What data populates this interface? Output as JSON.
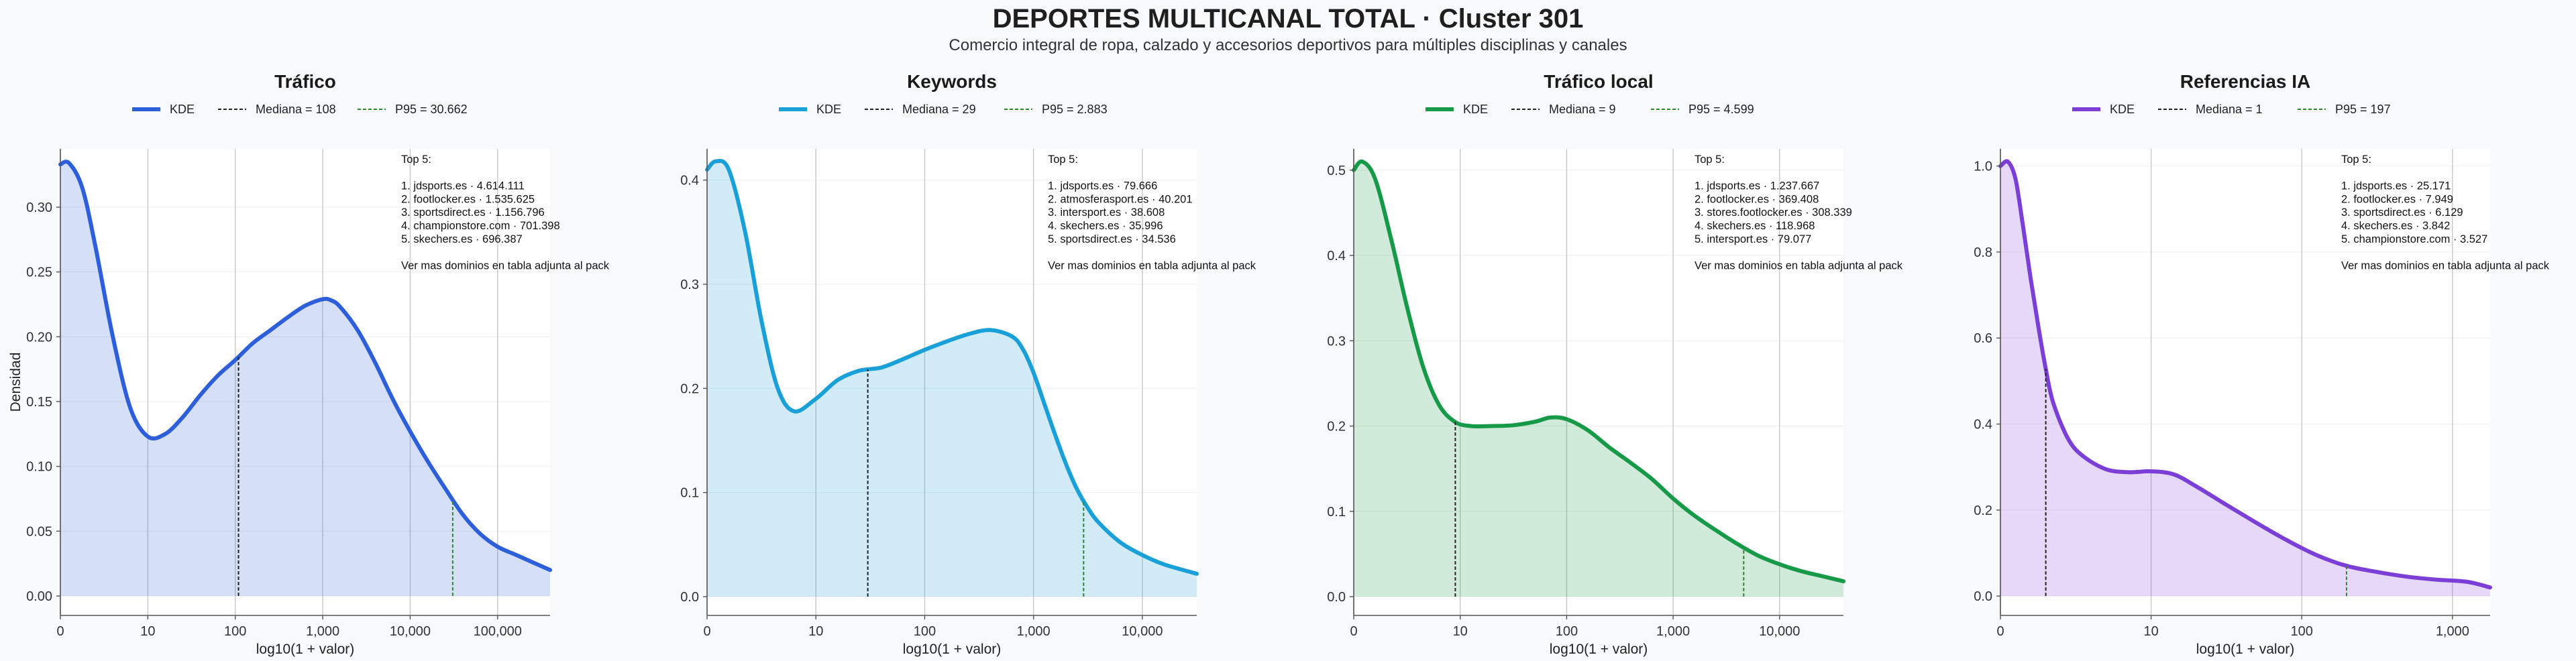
{
  "title": "DEPORTES MULTICANAL TOTAL · Cluster 301",
  "subtitle": "Comercio integral de ropa, calzado y accesorios deportivos para múltiples disciplinas y canales",
  "colors": {
    "trafico": "#2c5fd9",
    "keywords": "#1aa0d8",
    "trafico_local": "#169a48",
    "referencias_ia": "#7b3fd8",
    "median_line": "#222222",
    "p95_line": "#2a8a2a"
  },
  "chart_data": [
    {
      "type": "area",
      "title": "Tráfico",
      "xlabel": "log10(1 + valor)",
      "ylabel": "Densidad",
      "xscale": "log10(1 + x)",
      "xlim": [
        0,
        5.6
      ],
      "ylim": [
        -0.015,
        0.345
      ],
      "xticks": [
        0,
        1,
        2,
        3,
        4,
        5
      ],
      "xtick_labels": [
        "0",
        "10",
        "100",
        "1,000",
        "10,000",
        "100,000"
      ],
      "yticks": [
        0,
        0.05,
        0.1,
        0.15,
        0.2,
        0.25,
        0.3
      ],
      "ytick_labels": [
        "0.00",
        "0.05",
        "0.10",
        "0.15",
        "0.20",
        "0.25",
        "0.30"
      ],
      "legend": [
        "KDE",
        "Mediana = 108",
        "P95 = 30.662"
      ],
      "median_x": 2.037,
      "p95_x": 4.487,
      "series": [
        {
          "name": "KDE",
          "x": [
            0,
            0.1,
            0.25,
            0.4,
            0.6,
            0.8,
            1,
            1.2,
            1.4,
            1.6,
            1.8,
            2,
            2.2,
            2.4,
            2.6,
            2.8,
            3,
            3.1,
            3.2,
            3.4,
            3.6,
            3.8,
            4,
            4.2,
            4.4,
            4.6,
            4.8,
            5,
            5.2,
            5.4,
            5.6
          ],
          "values": [
            0.333,
            0.334,
            0.315,
            0.27,
            0.2,
            0.145,
            0.123,
            0.125,
            0.138,
            0.155,
            0.17,
            0.182,
            0.195,
            0.205,
            0.215,
            0.224,
            0.229,
            0.228,
            0.223,
            0.205,
            0.18,
            0.152,
            0.127,
            0.104,
            0.083,
            0.063,
            0.048,
            0.038,
            0.032,
            0.026,
            0.02
          ]
        }
      ],
      "annotation": [
        "Top 5:",
        "",
        "1. jdsports.es · 4.614.111",
        "2. footlocker.es · 1.535.625",
        "3. sportsdirect.es · 1.156.796",
        "4. championstore.com · 701.398",
        "5. skechers.es · 696.387",
        "",
        "Ver mas dominios en tabla adjunta al pack"
      ]
    },
    {
      "type": "area",
      "title": "Keywords",
      "xlabel": "log10(1 + valor)",
      "ylabel": "",
      "xscale": "log10(1 + x)",
      "xlim": [
        0,
        4.5
      ],
      "ylim": [
        -0.018,
        0.43
      ],
      "xticks": [
        0,
        1,
        2,
        3,
        4
      ],
      "xtick_labels": [
        "0",
        "10",
        "100",
        "1,000",
        "10,000"
      ],
      "yticks": [
        0,
        0.1,
        0.2,
        0.3,
        0.4
      ],
      "ytick_labels": [
        "0.0",
        "0.1",
        "0.2",
        "0.3",
        "0.4"
      ],
      "legend": [
        "KDE",
        "Mediana = 29",
        "P95 = 2.883"
      ],
      "median_x": 1.477,
      "p95_x": 3.46,
      "series": [
        {
          "name": "KDE",
          "x": [
            0,
            0.08,
            0.2,
            0.35,
            0.5,
            0.65,
            0.8,
            1,
            1.2,
            1.4,
            1.6,
            1.8,
            2,
            2.2,
            2.4,
            2.6,
            2.8,
            2.9,
            3,
            3.1,
            3.2,
            3.3,
            3.4,
            3.5,
            3.6,
            3.8,
            4,
            4.2,
            4.5
          ],
          "values": [
            0.41,
            0.418,
            0.41,
            0.35,
            0.265,
            0.2,
            0.178,
            0.19,
            0.208,
            0.217,
            0.22,
            0.228,
            0.237,
            0.245,
            0.252,
            0.256,
            0.25,
            0.238,
            0.215,
            0.185,
            0.155,
            0.127,
            0.103,
            0.085,
            0.071,
            0.052,
            0.04,
            0.031,
            0.022
          ]
        }
      ],
      "annotation": [
        "Top 5:",
        "",
        "1. jdsports.es · 79.666",
        "2. atmosferasport.es · 40.201",
        "3. intersport.es · 38.608",
        "4. skechers.es · 35.996",
        "5. sportsdirect.es · 34.536",
        "",
        "Ver mas dominios en tabla adjunta al pack"
      ]
    },
    {
      "type": "area",
      "title": "Tráfico local",
      "xlabel": "log10(1 + valor)",
      "ylabel": "",
      "xscale": "log10(1 + x)",
      "xlim": [
        0,
        4.6
      ],
      "ylim": [
        -0.022,
        0.525
      ],
      "xticks": [
        0,
        1,
        2,
        3,
        4
      ],
      "xtick_labels": [
        "0",
        "10",
        "100",
        "1,000",
        "10,000"
      ],
      "yticks": [
        0,
        0.1,
        0.2,
        0.3,
        0.4,
        0.5
      ],
      "ytick_labels": [
        "0.0",
        "0.1",
        "0.2",
        "0.3",
        "0.4",
        "0.5"
      ],
      "legend": [
        "KDE",
        "Mediana = 9",
        "P95 = 4.599"
      ],
      "median_x": 0.954,
      "p95_x": 3.663,
      "series": [
        {
          "name": "KDE",
          "x": [
            0,
            0.08,
            0.2,
            0.35,
            0.5,
            0.65,
            0.8,
            0.95,
            1.1,
            1.3,
            1.5,
            1.7,
            1.85,
            2,
            2.2,
            2.4,
            2.6,
            2.8,
            3,
            3.2,
            3.4,
            3.6,
            3.8,
            4,
            4.2,
            4.4,
            4.6
          ],
          "values": [
            0.5,
            0.51,
            0.49,
            0.42,
            0.34,
            0.27,
            0.225,
            0.205,
            0.2,
            0.2,
            0.201,
            0.205,
            0.21,
            0.208,
            0.195,
            0.175,
            0.157,
            0.138,
            0.115,
            0.095,
            0.078,
            0.062,
            0.048,
            0.038,
            0.03,
            0.024,
            0.018
          ]
        }
      ],
      "annotation": [
        "Top 5:",
        "",
        "1. jdsports.es · 1.237.667",
        "2. footlocker.es · 369.408",
        "3. stores.footlocker.es · 308.339",
        "4. skechers.es · 118.968",
        "5. intersport.es · 79.077",
        "",
        "Ver mas dominios en tabla adjunta al pack"
      ]
    },
    {
      "type": "area",
      "title": "Referencias IA",
      "xlabel": "log10(1 + valor)",
      "ylabel": "",
      "xscale": "log10(1 + x)",
      "xlim": [
        0,
        3.25
      ],
      "ylim": [
        -0.045,
        1.04
      ],
      "xticks": [
        0,
        1,
        2,
        3
      ],
      "xtick_labels": [
        "0",
        "10",
        "100",
        "1,000"
      ],
      "yticks": [
        0,
        0.2,
        0.4,
        0.6,
        0.8,
        1.0
      ],
      "ytick_labels": [
        "0.0",
        "0.2",
        "0.4",
        "0.6",
        "0.8",
        "1.0"
      ],
      "legend": [
        "KDE",
        "Mediana = 1",
        "P95 = 197"
      ],
      "median_x": 0.301,
      "p95_x": 2.297,
      "series": [
        {
          "name": "KDE",
          "x": [
            0,
            0.05,
            0.1,
            0.15,
            0.2,
            0.25,
            0.3,
            0.35,
            0.45,
            0.55,
            0.7,
            0.85,
            1,
            1.15,
            1.3,
            1.5,
            1.7,
            1.9,
            2.1,
            2.3,
            2.5,
            2.7,
            2.9,
            3.1,
            3.25
          ],
          "values": [
            1.0,
            1.01,
            0.97,
            0.86,
            0.74,
            0.63,
            0.53,
            0.45,
            0.365,
            0.325,
            0.295,
            0.288,
            0.29,
            0.283,
            0.255,
            0.212,
            0.17,
            0.13,
            0.095,
            0.07,
            0.056,
            0.045,
            0.038,
            0.033,
            0.02
          ]
        }
      ],
      "annotation": [
        "Top 5:",
        "",
        "1. jdsports.es · 25.171",
        "2. footlocker.es · 7.949",
        "3. sportsdirect.es · 6.129",
        "4. skechers.es · 3.842",
        "5. championstore.com · 3.527",
        "",
        "Ver mas dominios en tabla adjunta al pack"
      ]
    }
  ]
}
